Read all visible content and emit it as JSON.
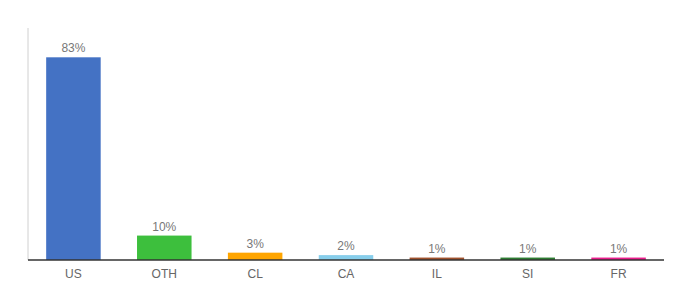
{
  "chart_data": {
    "type": "bar",
    "categories": [
      "US",
      "OTH",
      "CL",
      "CA",
      "IL",
      "SI",
      "FR"
    ],
    "values": [
      83,
      10,
      3,
      2,
      1,
      1,
      1
    ],
    "value_labels": [
      "83%",
      "10%",
      "3%",
      "2%",
      "1%",
      "1%",
      "1%"
    ],
    "colors": [
      "#4472C4",
      "#3DBF3D",
      "#FFA500",
      "#87CEEB",
      "#A0522D",
      "#2E7D32",
      "#E91E8C"
    ],
    "ylim": [
      0,
      95
    ],
    "data_labels": true,
    "tick_labels": "x"
  }
}
